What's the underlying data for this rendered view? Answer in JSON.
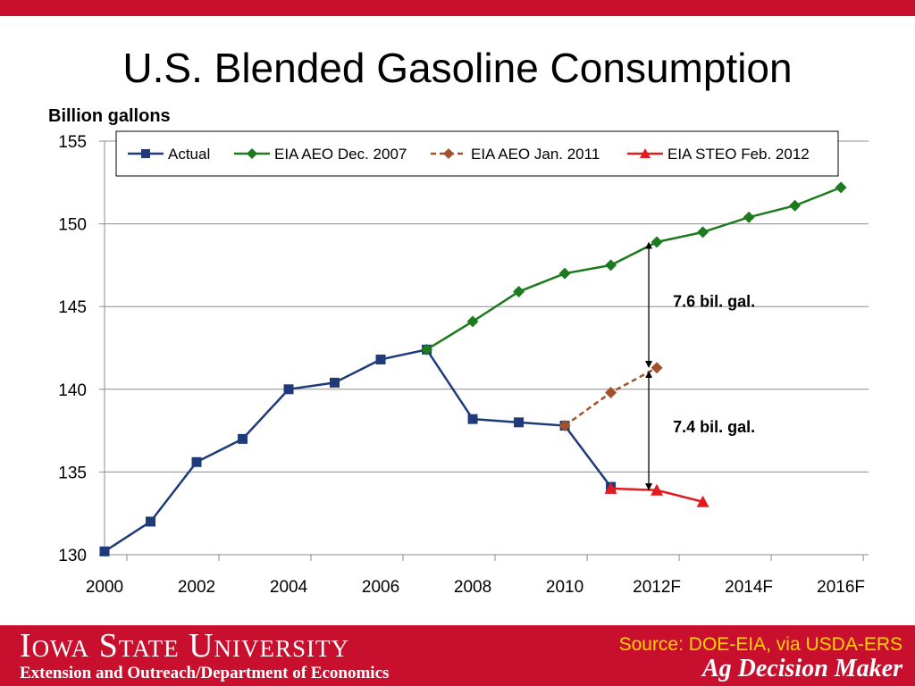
{
  "slide": {
    "title": "U.S. Blended Gasoline Consumption"
  },
  "footer": {
    "university": "Iowa State University",
    "department": "Extension and Outreach/Department of Economics",
    "source": "Source: DOE-EIA, via USDA-ERS",
    "brand": "Ag Decision Maker",
    "colors": {
      "band": "#c8102e",
      "source_text": "#ffd200"
    }
  },
  "chart_data": {
    "type": "line",
    "ylabel": "Billion gallons",
    "xlabel": "",
    "ylim": [
      130,
      155
    ],
    "yticks": [
      130,
      135,
      140,
      145,
      150,
      155
    ],
    "xlim": [
      2000,
      2016.6
    ],
    "xtick_values": [
      2000,
      2002,
      2004,
      2006,
      2008,
      2010,
      2012,
      2014,
      2016
    ],
    "xtick_labels": [
      "2000",
      "2002",
      "2004",
      "2006",
      "2008",
      "2010",
      "2012F",
      "2014F",
      "2016F"
    ],
    "grid": "horizontal",
    "legend_position": "top",
    "series": [
      {
        "name": "Actual",
        "color": "#1f3a7a",
        "marker": "square",
        "dash": "solid",
        "x": [
          2000,
          2001,
          2002,
          2003,
          2004,
          2005,
          2006,
          2007,
          2008,
          2009,
          2010,
          2011
        ],
        "y": [
          130.2,
          132.0,
          135.6,
          137.0,
          140.0,
          140.4,
          141.8,
          142.4,
          138.2,
          138.0,
          137.8,
          134.1
        ]
      },
      {
        "name": "EIA AEO Dec. 2007",
        "color": "#1e7a1e",
        "marker": "diamond",
        "dash": "solid",
        "x": [
          2007,
          2008,
          2009,
          2010,
          2011,
          2012,
          2013,
          2014,
          2015,
          2016
        ],
        "y": [
          142.4,
          144.1,
          145.9,
          147.0,
          147.5,
          148.9,
          149.5,
          150.4,
          151.1,
          152.2
        ]
      },
      {
        "name": "EIA AEO Jan. 2011",
        "color": "#a0522d",
        "marker": "diamond",
        "dash": "dashed",
        "x": [
          2010,
          2011,
          2012
        ],
        "y": [
          137.8,
          139.8,
          141.3
        ]
      },
      {
        "name": "EIA STEO Feb. 2012",
        "color": "#e41a1c",
        "marker": "triangle",
        "dash": "solid",
        "x": [
          2011,
          2012,
          2013
        ],
        "y": [
          134.0,
          133.9,
          133.2
        ]
      }
    ],
    "annotations": [
      {
        "text": "7.6 bil. gal.",
        "x": 2012,
        "y_from": 148.7,
        "y_to": 141.5
      },
      {
        "text": "7.4 bil. gal.",
        "x": 2012,
        "y_from": 140.9,
        "y_to": 134.1
      }
    ]
  }
}
